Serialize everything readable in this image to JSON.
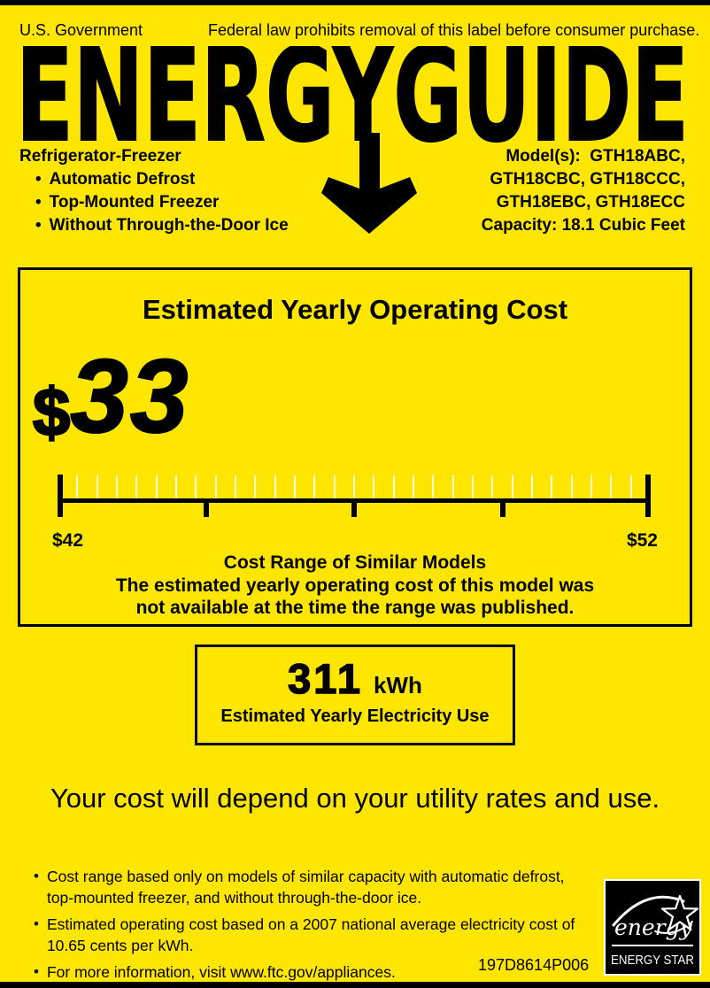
{
  "colors": {
    "background": "#FFE600",
    "ink": "#000000",
    "minor_tick": "rgba(255,255,255,0.85)"
  },
  "header": {
    "agency": "U.S. Government",
    "notice": "Federal law prohibits removal of this label before consumer purchase."
  },
  "logo": {
    "wordmark": "ENERGYGUIDE"
  },
  "product": {
    "type": "Refrigerator-Freezer",
    "bullet": "•",
    "features": [
      "Automatic Defrost",
      "Top-Mounted Freezer",
      "Without Through-the-Door Ice"
    ]
  },
  "model": {
    "line1": "Model(s):  GTH18ABC,",
    "line2": "GTH18CBC, GTH18CCC,",
    "line3": "GTH18EBC, GTH18ECC",
    "capacity": "Capacity: 18.1 Cubic Feet"
  },
  "cost_box": {
    "title": "Estimated Yearly Operating Cost",
    "currency": "$",
    "value": "33",
    "scale": {
      "min_label": "$42",
      "max_label": "$52",
      "min_value": 42,
      "max_value": 52,
      "caption": "Cost Range of Similar Models",
      "note_line1": "The estimated yearly operating cost of this model was",
      "note_line2": "not available at the time the range was published."
    }
  },
  "electricity_box": {
    "value": "311",
    "unit": "kWh",
    "label": "Estimated Yearly Electricity Use"
  },
  "utility_note": "Your cost will depend on your utility rates and use.",
  "footnotes": {
    "bullet": "•",
    "items": [
      "Cost range based only on models of similar capacity with automatic defrost, top-mounted freezer, and without through-the-door ice.",
      "Estimated operating cost based on a 2007 national average electricity cost of 10.65 cents per kWh.",
      "For more information, visit www.ftc.gov/appliances."
    ]
  },
  "part_number": "197D8614P006",
  "energy_star": {
    "script_text": "energy",
    "wordmark": "ENERGY STAR"
  }
}
